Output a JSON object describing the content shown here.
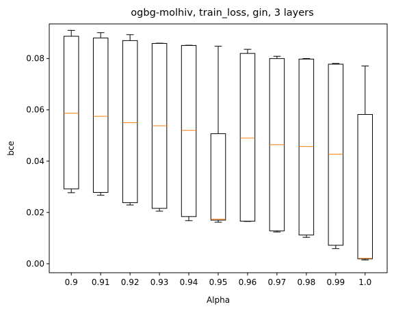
{
  "chart_data": {
    "type": "box",
    "title": "ogbg-molhiv, train_loss, gin, 3 layers",
    "xlabel": "Alpha",
    "ylabel": "bce",
    "ylim": [
      -0.0035,
      0.0935
    ],
    "yticks": [
      0.0,
      0.02,
      0.04,
      0.06,
      0.08
    ],
    "ytick_labels": [
      "0.00",
      "0.02",
      "0.04",
      "0.06",
      "0.08"
    ],
    "categories": [
      "0.9",
      "0.91",
      "0.92",
      "0.93",
      "0.94",
      "0.95",
      "0.96",
      "0.97",
      "0.98",
      "0.99",
      "1.0"
    ],
    "boxes": [
      {
        "whisker_low": 0.0277,
        "q1": 0.0292,
        "median": 0.0587,
        "q3": 0.0887,
        "whisker_high": 0.091
      },
      {
        "whisker_low": 0.0267,
        "q1": 0.0278,
        "median": 0.0575,
        "q3": 0.088,
        "whisker_high": 0.0901
      },
      {
        "whisker_low": 0.0229,
        "q1": 0.0238,
        "median": 0.055,
        "q3": 0.087,
        "whisker_high": 0.0893
      },
      {
        "whisker_low": 0.0205,
        "q1": 0.0216,
        "median": 0.0538,
        "q3": 0.0859,
        "whisker_high": 0.086
      },
      {
        "whisker_low": 0.0168,
        "q1": 0.0184,
        "median": 0.052,
        "q3": 0.0851,
        "whisker_high": 0.0852
      },
      {
        "whisker_low": 0.0162,
        "q1": 0.017,
        "median": 0.0174,
        "q3": 0.0507,
        "whisker_high": 0.0848
      },
      {
        "whisker_low": 0.0165,
        "q1": 0.0166,
        "median": 0.049,
        "q3": 0.082,
        "whisker_high": 0.0836
      },
      {
        "whisker_low": 0.0124,
        "q1": 0.0128,
        "median": 0.0464,
        "q3": 0.08,
        "whisker_high": 0.0809
      },
      {
        "whisker_low": 0.0103,
        "q1": 0.0112,
        "median": 0.0457,
        "q3": 0.0798,
        "whisker_high": 0.08
      },
      {
        "whisker_low": 0.0059,
        "q1": 0.0072,
        "median": 0.0427,
        "q3": 0.0778,
        "whisker_high": 0.0781
      },
      {
        "whisker_low": 0.0015,
        "q1": 0.0019,
        "median": 0.0021,
        "q3": 0.0582,
        "whisker_high": 0.0771
      }
    ],
    "box_color": "#000000",
    "median_color": "#ff7f0e",
    "grid": false,
    "legend": "none"
  }
}
